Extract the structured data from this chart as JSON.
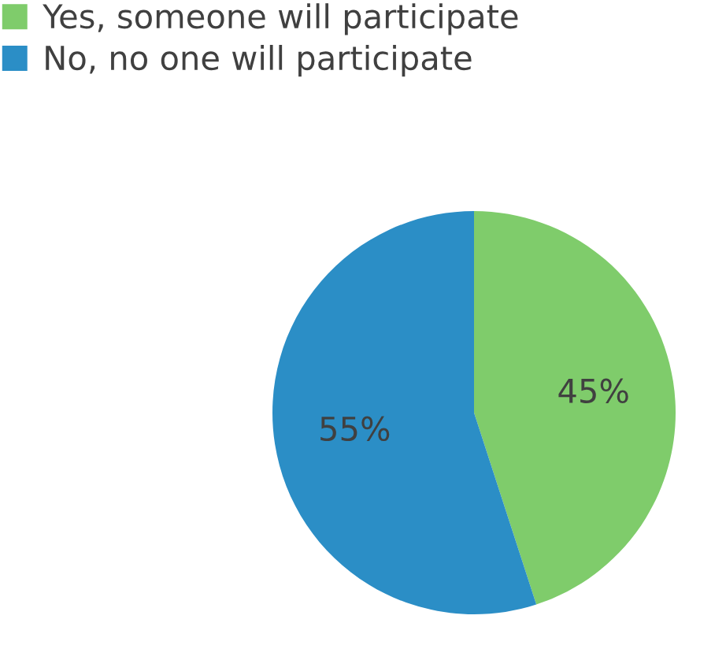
{
  "chart_data": {
    "type": "pie",
    "categories": [
      "Yes, someone will participate",
      "No, no one will participate"
    ],
    "values": [
      45,
      55
    ],
    "colors": [
      "#7fcc6b",
      "#2b8ec6"
    ],
    "value_labels": [
      "45%",
      "55%"
    ],
    "legend": "top left"
  }
}
